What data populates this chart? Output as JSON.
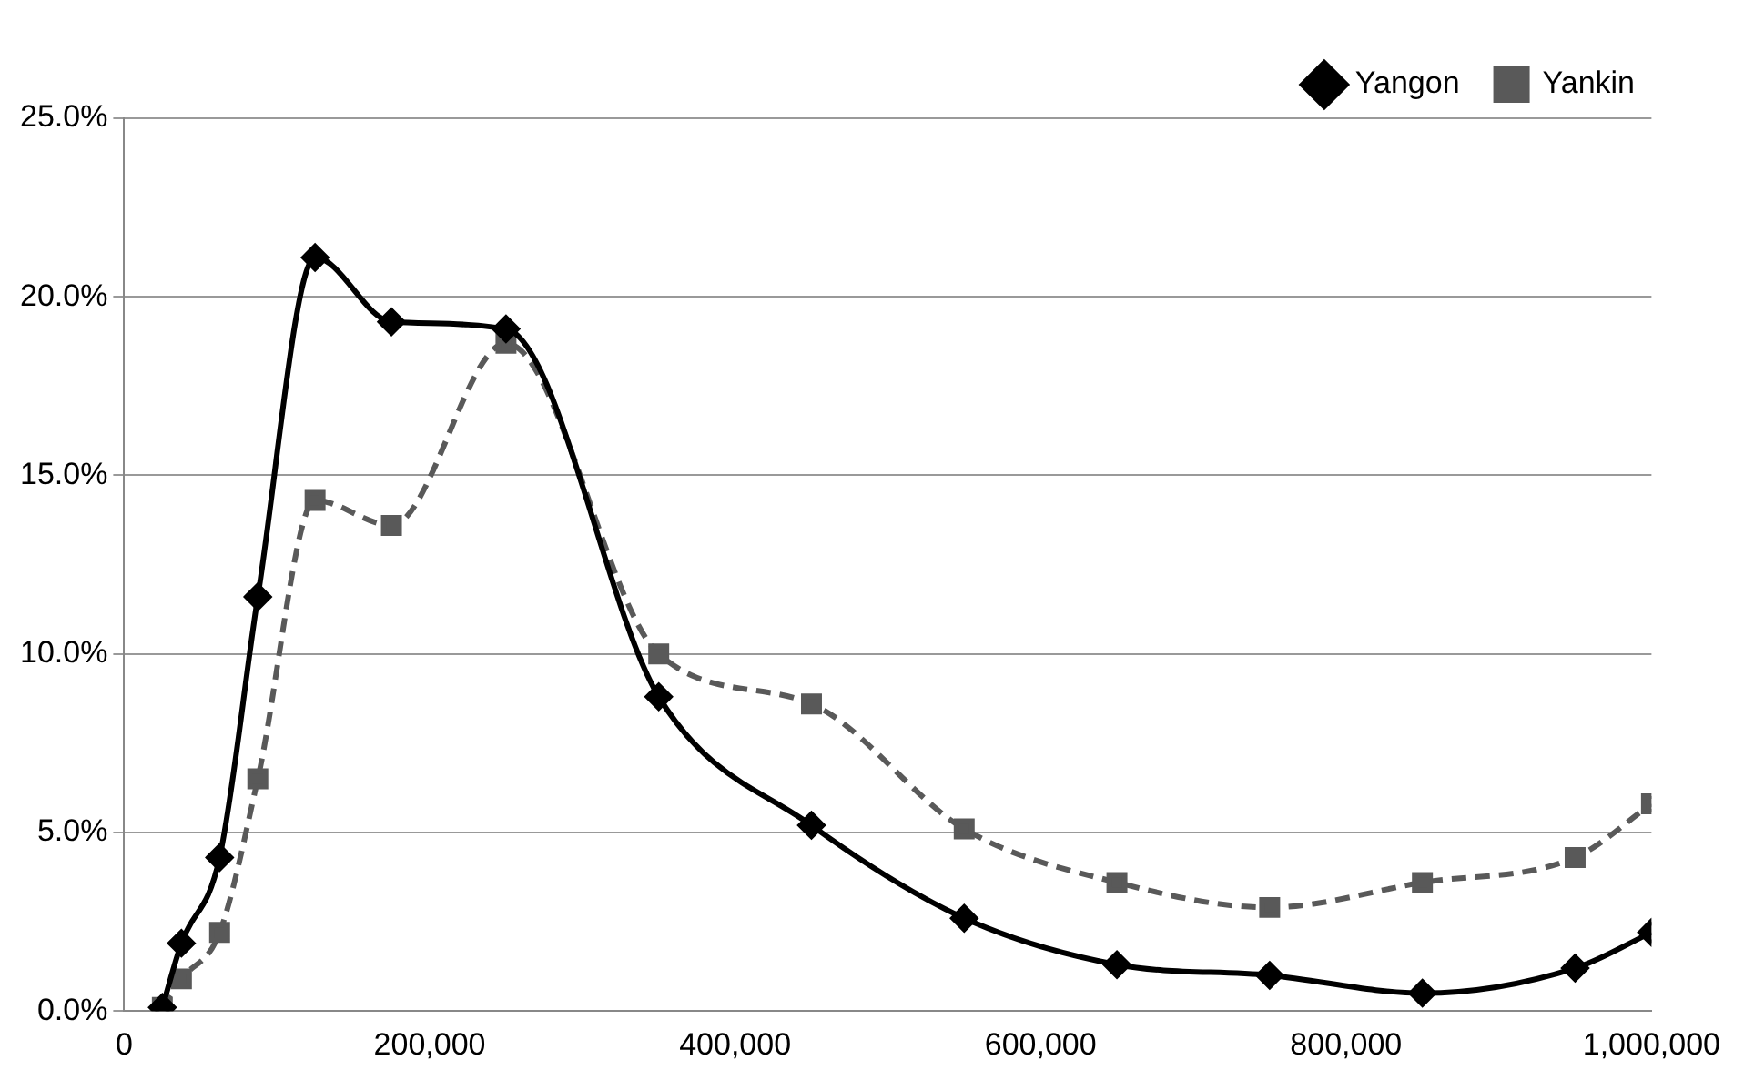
{
  "chart_data": {
    "type": "line",
    "x": [
      25000,
      37500,
      62500,
      87500,
      125000,
      175000,
      250000,
      350000,
      450000,
      550000,
      650000,
      750000,
      850000,
      950000,
      1000000
    ],
    "series": [
      {
        "name": "Yankin",
        "color": "#595959",
        "marker": "square",
        "line_style": "dashed",
        "values": [
          0.1,
          0.9,
          2.2,
          6.5,
          14.3,
          13.6,
          18.7,
          10.0,
          8.6,
          5.1,
          3.6,
          2.9,
          3.6,
          4.3,
          5.8
        ]
      },
      {
        "name": "Yangon",
        "color": "#000000",
        "marker": "diamond",
        "line_style": "solid",
        "values": [
          0.1,
          1.9,
          4.3,
          11.6,
          21.1,
          19.3,
          19.1,
          8.8,
          5.2,
          2.6,
          1.3,
          1.0,
          0.5,
          1.2,
          2.2
        ]
      }
    ],
    "xlim": [
      0,
      1000000
    ],
    "xticks": [
      {
        "value": 0,
        "label": "0"
      },
      {
        "value": 200000,
        "label": "200,000"
      },
      {
        "value": 400000,
        "label": "400,000"
      },
      {
        "value": 600000,
        "label": "600,000"
      },
      {
        "value": 800000,
        "label": "800,000"
      },
      {
        "value": 1000000,
        "label": "1,000,000"
      }
    ],
    "ylim": [
      0,
      25
    ],
    "yticks": [
      {
        "value": 0,
        "label": "0.0%"
      },
      {
        "value": 5,
        "label": "5.0%"
      },
      {
        "value": 10,
        "label": "10.0%"
      },
      {
        "value": 15,
        "label": "15.0%"
      },
      {
        "value": 20,
        "label": "20.0%"
      },
      {
        "value": 25,
        "label": "25.0%"
      }
    ],
    "grid": "y",
    "legend": "top right"
  }
}
